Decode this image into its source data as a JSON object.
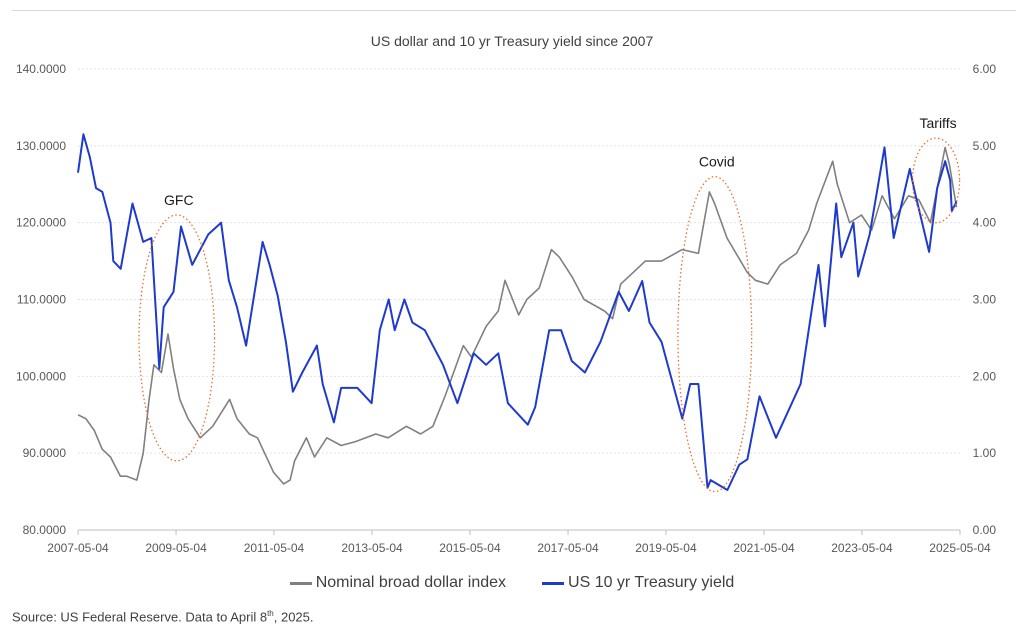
{
  "chart_data": {
    "type": "line",
    "title": "US dollar and 10 yr Treasury yield since 2007",
    "x_ticks": [
      "2007-05-04",
      "2009-05-04",
      "2011-05-04",
      "2013-05-04",
      "2015-05-04",
      "2017-05-04",
      "2019-05-04",
      "2021-05-04",
      "2023-05-04",
      "2025-05-04"
    ],
    "x_range": [
      "2007-05-04",
      "2025-05-04"
    ],
    "y_left": {
      "ticks": [
        "80.0000",
        "90.0000",
        "100.0000",
        "110.0000",
        "120.0000",
        "130.0000",
        "140.0000"
      ],
      "range": [
        80,
        140
      ]
    },
    "y_right": {
      "ticks": [
        "0.00",
        "1.00",
        "2.00",
        "3.00",
        "4.00",
        "5.00",
        "6.00"
      ],
      "range": [
        0,
        6
      ]
    },
    "grid": "horizontal",
    "legend_position": "bottom",
    "series": [
      {
        "name": "Nominal broad dollar index",
        "axis": "left",
        "color": "#808080",
        "points": [
          [
            "2007-05-04",
            95.0
          ],
          [
            "2007-07-01",
            94.5
          ],
          [
            "2007-09-01",
            93.0
          ],
          [
            "2007-11-01",
            90.5
          ],
          [
            "2008-01-01",
            89.5
          ],
          [
            "2008-03-15",
            87.0
          ],
          [
            "2008-05-01",
            87.0
          ],
          [
            "2008-07-15",
            86.5
          ],
          [
            "2008-09-01",
            90.0
          ],
          [
            "2008-10-15",
            97.0
          ],
          [
            "2008-11-20",
            101.5
          ],
          [
            "2009-01-15",
            100.5
          ],
          [
            "2009-03-05",
            105.5
          ],
          [
            "2009-04-15",
            101.0
          ],
          [
            "2009-06-01",
            97.0
          ],
          [
            "2009-08-01",
            94.5
          ],
          [
            "2009-11-01",
            92.0
          ],
          [
            "2010-02-01",
            93.5
          ],
          [
            "2010-06-07",
            97.0
          ],
          [
            "2010-08-01",
            94.5
          ],
          [
            "2010-11-01",
            92.5
          ],
          [
            "2011-01-01",
            92.0
          ],
          [
            "2011-05-01",
            87.5
          ],
          [
            "2011-07-15",
            86.0
          ],
          [
            "2011-09-01",
            86.5
          ],
          [
            "2011-10-05",
            89.0
          ],
          [
            "2012-01-01",
            92.0
          ],
          [
            "2012-03-01",
            89.5
          ],
          [
            "2012-06-01",
            92.0
          ],
          [
            "2012-09-15",
            91.0
          ],
          [
            "2013-01-01",
            91.5
          ],
          [
            "2013-06-01",
            92.5
          ],
          [
            "2013-09-01",
            92.0
          ],
          [
            "2014-01-15",
            93.5
          ],
          [
            "2014-05-01",
            92.5
          ],
          [
            "2014-08-01",
            93.5
          ],
          [
            "2014-11-01",
            97.5
          ],
          [
            "2015-03-15",
            104.0
          ],
          [
            "2015-05-15",
            102.5
          ],
          [
            "2015-09-01",
            106.5
          ],
          [
            "2015-12-01",
            108.5
          ],
          [
            "2016-01-20",
            112.5
          ],
          [
            "2016-05-01",
            108.0
          ],
          [
            "2016-07-01",
            110.0
          ],
          [
            "2016-10-01",
            111.5
          ],
          [
            "2016-12-31",
            116.5
          ],
          [
            "2017-03-01",
            115.5
          ],
          [
            "2017-06-01",
            113.0
          ],
          [
            "2017-09-01",
            110.0
          ],
          [
            "2018-01-31",
            108.5
          ],
          [
            "2018-04-01",
            107.5
          ],
          [
            "2018-06-01",
            112.0
          ],
          [
            "2018-09-01",
            113.5
          ],
          [
            "2018-12-01",
            115.0
          ],
          [
            "2019-04-01",
            115.0
          ],
          [
            "2019-09-01",
            116.5
          ],
          [
            "2020-01-01",
            116.0
          ],
          [
            "2020-03-23",
            124.0
          ],
          [
            "2020-05-01",
            122.5
          ],
          [
            "2020-08-01",
            118.0
          ],
          [
            "2020-12-31",
            113.5
          ],
          [
            "2021-03-01",
            112.5
          ],
          [
            "2021-06-01",
            112.0
          ],
          [
            "2021-09-01",
            114.5
          ],
          [
            "2022-01-01",
            116.0
          ],
          [
            "2022-04-01",
            119.0
          ],
          [
            "2022-06-01",
            122.5
          ],
          [
            "2022-09-28",
            128.0
          ],
          [
            "2022-11-01",
            125.0
          ],
          [
            "2023-02-01",
            120.0
          ],
          [
            "2023-05-01",
            121.0
          ],
          [
            "2023-07-15",
            119.0
          ],
          [
            "2023-10-01",
            123.5
          ],
          [
            "2024-01-01",
            120.5
          ],
          [
            "2024-04-15",
            123.5
          ],
          [
            "2024-07-01",
            123.0
          ],
          [
            "2024-09-25",
            120.0
          ],
          [
            "2024-11-15",
            124.5
          ],
          [
            "2025-01-13",
            129.8
          ],
          [
            "2025-02-15",
            127.5
          ],
          [
            "2025-03-15",
            124.5
          ],
          [
            "2025-04-08",
            122.0
          ]
        ]
      },
      {
        "name": "US 10 yr Treasury yield",
        "axis": "right",
        "color": "#1f3bcc",
        "points": [
          [
            "2007-05-04",
            4.65
          ],
          [
            "2007-06-13",
            5.15
          ],
          [
            "2007-08-01",
            4.85
          ],
          [
            "2007-09-15",
            4.45
          ],
          [
            "2007-11-01",
            4.4
          ],
          [
            "2008-01-01",
            4.0
          ],
          [
            "2008-01-22",
            3.5
          ],
          [
            "2008-03-17",
            3.4
          ],
          [
            "2008-06-13",
            4.25
          ],
          [
            "2008-09-01",
            3.75
          ],
          [
            "2008-11-01",
            3.8
          ],
          [
            "2008-12-30",
            2.1
          ],
          [
            "2009-02-01",
            2.9
          ],
          [
            "2009-04-15",
            3.1
          ],
          [
            "2009-06-10",
            3.95
          ],
          [
            "2009-09-01",
            3.45
          ],
          [
            "2009-12-31",
            3.85
          ],
          [
            "2010-04-05",
            4.0
          ],
          [
            "2010-06-01",
            3.25
          ],
          [
            "2010-08-01",
            2.9
          ],
          [
            "2010-10-08",
            2.4
          ],
          [
            "2011-02-08",
            3.75
          ],
          [
            "2011-04-01",
            3.45
          ],
          [
            "2011-06-01",
            3.05
          ],
          [
            "2011-08-01",
            2.45
          ],
          [
            "2011-09-22",
            1.8
          ],
          [
            "2011-12-01",
            2.05
          ],
          [
            "2012-03-19",
            2.4
          ],
          [
            "2012-05-01",
            1.9
          ],
          [
            "2012-07-24",
            1.4
          ],
          [
            "2012-09-15",
            1.85
          ],
          [
            "2013-01-15",
            1.85
          ],
          [
            "2013-05-01",
            1.65
          ],
          [
            "2013-07-01",
            2.6
          ],
          [
            "2013-09-05",
            3.0
          ],
          [
            "2013-10-20",
            2.6
          ],
          [
            "2013-12-31",
            3.0
          ],
          [
            "2014-03-01",
            2.7
          ],
          [
            "2014-06-01",
            2.6
          ],
          [
            "2014-10-15",
            2.15
          ],
          [
            "2015-01-30",
            1.65
          ],
          [
            "2015-06-01",
            2.3
          ],
          [
            "2015-09-01",
            2.15
          ],
          [
            "2015-12-01",
            2.3
          ],
          [
            "2016-02-11",
            1.65
          ],
          [
            "2016-07-08",
            1.37
          ],
          [
            "2016-09-01",
            1.6
          ],
          [
            "2016-12-15",
            2.6
          ],
          [
            "2017-03-13",
            2.6
          ],
          [
            "2017-06-01",
            2.2
          ],
          [
            "2017-09-07",
            2.05
          ],
          [
            "2018-01-01",
            2.45
          ],
          [
            "2018-05-17",
            3.1
          ],
          [
            "2018-08-01",
            2.85
          ],
          [
            "2018-11-08",
            3.24
          ],
          [
            "2019-01-01",
            2.7
          ],
          [
            "2019-04-01",
            2.45
          ],
          [
            "2019-09-03",
            1.45
          ],
          [
            "2019-11-01",
            1.9
          ],
          [
            "2020-01-01",
            1.9
          ],
          [
            "2020-03-09",
            0.55
          ],
          [
            "2020-04-01",
            0.65
          ],
          [
            "2020-08-04",
            0.52
          ],
          [
            "2020-11-01",
            0.85
          ],
          [
            "2020-12-31",
            0.92
          ],
          [
            "2021-03-31",
            1.74
          ],
          [
            "2021-08-01",
            1.2
          ],
          [
            "2021-11-01",
            1.55
          ],
          [
            "2022-02-01",
            1.9
          ],
          [
            "2022-06-14",
            3.45
          ],
          [
            "2022-08-01",
            2.65
          ],
          [
            "2022-10-24",
            4.25
          ],
          [
            "2022-12-01",
            3.55
          ],
          [
            "2023-03-01",
            4.0
          ],
          [
            "2023-04-06",
            3.3
          ],
          [
            "2023-07-01",
            3.85
          ],
          [
            "2023-10-19",
            4.98
          ],
          [
            "2023-12-27",
            3.8
          ],
          [
            "2024-04-25",
            4.7
          ],
          [
            "2024-06-01",
            4.4
          ],
          [
            "2024-09-16",
            3.62
          ],
          [
            "2024-11-15",
            4.45
          ],
          [
            "2025-01-14",
            4.8
          ],
          [
            "2025-02-20",
            4.55
          ],
          [
            "2025-03-04",
            4.15
          ],
          [
            "2025-04-01",
            4.25
          ],
          [
            "2025-04-08",
            4.28
          ]
        ]
      }
    ],
    "annotations": [
      {
        "label": "GFC",
        "x_from": "2008-08-01",
        "x_to": "2010-02-15",
        "y_left": [
          89,
          121
        ]
      },
      {
        "label": "Covid",
        "x_from": "2019-08-01",
        "x_to": "2021-02-01",
        "y_left": [
          85,
          126
        ]
      },
      {
        "label": "Tariffs",
        "x_from": "2024-05-15",
        "x_to": "2025-05-01",
        "y_left": [
          120,
          131
        ]
      }
    ]
  },
  "source": {
    "prefix": "Source: US Federal Reserve. Data to April 8",
    "superscript": "th",
    "suffix": ", 2025."
  }
}
